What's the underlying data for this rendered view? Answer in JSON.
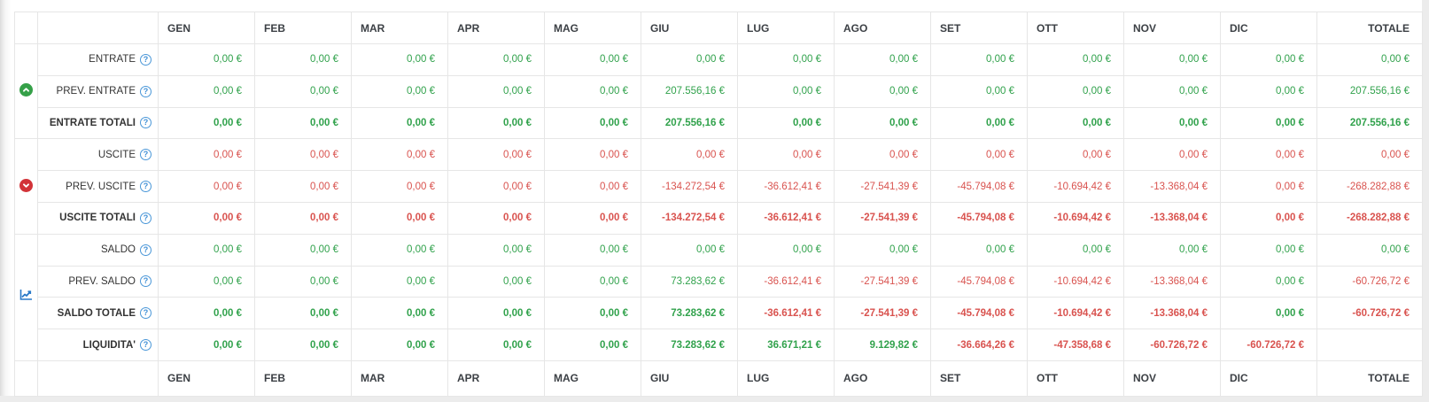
{
  "table": {
    "columns": [
      "GEN",
      "FEB",
      "MAR",
      "APR",
      "MAG",
      "GIU",
      "LUG",
      "AGO",
      "SET",
      "OTT",
      "NOV",
      "DIC",
      "TOTALE"
    ],
    "colors": {
      "positive": "#31a24c",
      "negative": "#d9534f",
      "entrate_icon": "#35a048",
      "uscite_icon": "#d23338",
      "saldo_icon": "#2979c8",
      "help_icon": "#3f8fd6"
    },
    "help_glyph": "?",
    "groups": [
      {
        "name": "entrate",
        "icon": "chevron-up-circle-icon",
        "rows": [
          {
            "label": "ENTRATE",
            "bold": false,
            "values": [
              [
                "0,00 €",
                "g"
              ],
              [
                "0,00 €",
                "g"
              ],
              [
                "0,00 €",
                "g"
              ],
              [
                "0,00 €",
                "g"
              ],
              [
                "0,00 €",
                "g"
              ],
              [
                "0,00 €",
                "g"
              ],
              [
                "0,00 €",
                "g"
              ],
              [
                "0,00 €",
                "g"
              ],
              [
                "0,00 €",
                "g"
              ],
              [
                "0,00 €",
                "g"
              ],
              [
                "0,00 €",
                "g"
              ],
              [
                "0,00 €",
                "g"
              ],
              [
                "0,00 €",
                "g"
              ]
            ]
          },
          {
            "label": "PREV. ENTRATE",
            "bold": false,
            "values": [
              [
                "0,00 €",
                "g"
              ],
              [
                "0,00 €",
                "g"
              ],
              [
                "0,00 €",
                "g"
              ],
              [
                "0,00 €",
                "g"
              ],
              [
                "0,00 €",
                "g"
              ],
              [
                "207.556,16 €",
                "g"
              ],
              [
                "0,00 €",
                "g"
              ],
              [
                "0,00 €",
                "g"
              ],
              [
                "0,00 €",
                "g"
              ],
              [
                "0,00 €",
                "g"
              ],
              [
                "0,00 €",
                "g"
              ],
              [
                "0,00 €",
                "g"
              ],
              [
                "207.556,16 €",
                "g"
              ]
            ]
          },
          {
            "label": "ENTRATE TOTALI",
            "bold": true,
            "values": [
              [
                "0,00 €",
                "g"
              ],
              [
                "0,00 €",
                "g"
              ],
              [
                "0,00 €",
                "g"
              ],
              [
                "0,00 €",
                "g"
              ],
              [
                "0,00 €",
                "g"
              ],
              [
                "207.556,16 €",
                "g"
              ],
              [
                "0,00 €",
                "g"
              ],
              [
                "0,00 €",
                "g"
              ],
              [
                "0,00 €",
                "g"
              ],
              [
                "0,00 €",
                "g"
              ],
              [
                "0,00 €",
                "g"
              ],
              [
                "0,00 €",
                "g"
              ],
              [
                "207.556,16 €",
                "g"
              ]
            ]
          }
        ]
      },
      {
        "name": "uscite",
        "icon": "chevron-down-circle-icon",
        "rows": [
          {
            "label": "USCITE",
            "bold": false,
            "values": [
              [
                "0,00 €",
                "r"
              ],
              [
                "0,00 €",
                "r"
              ],
              [
                "0,00 €",
                "r"
              ],
              [
                "0,00 €",
                "r"
              ],
              [
                "0,00 €",
                "r"
              ],
              [
                "0,00 €",
                "r"
              ],
              [
                "0,00 €",
                "r"
              ],
              [
                "0,00 €",
                "r"
              ],
              [
                "0,00 €",
                "r"
              ],
              [
                "0,00 €",
                "r"
              ],
              [
                "0,00 €",
                "r"
              ],
              [
                "0,00 €",
                "r"
              ],
              [
                "0,00 €",
                "r"
              ]
            ]
          },
          {
            "label": "PREV. USCITE",
            "bold": false,
            "values": [
              [
                "0,00 €",
                "r"
              ],
              [
                "0,00 €",
                "r"
              ],
              [
                "0,00 €",
                "r"
              ],
              [
                "0,00 €",
                "r"
              ],
              [
                "0,00 €",
                "r"
              ],
              [
                "-134.272,54 €",
                "r"
              ],
              [
                "-36.612,41 €",
                "r"
              ],
              [
                "-27.541,39 €",
                "r"
              ],
              [
                "-45.794,08 €",
                "r"
              ],
              [
                "-10.694,42 €",
                "r"
              ],
              [
                "-13.368,04 €",
                "r"
              ],
              [
                "0,00 €",
                "r"
              ],
              [
                "-268.282,88 €",
                "r"
              ]
            ]
          },
          {
            "label": "USCITE TOTALI",
            "bold": true,
            "values": [
              [
                "0,00 €",
                "r"
              ],
              [
                "0,00 €",
                "r"
              ],
              [
                "0,00 €",
                "r"
              ],
              [
                "0,00 €",
                "r"
              ],
              [
                "0,00 €",
                "r"
              ],
              [
                "-134.272,54 €",
                "r"
              ],
              [
                "-36.612,41 €",
                "r"
              ],
              [
                "-27.541,39 €",
                "r"
              ],
              [
                "-45.794,08 €",
                "r"
              ],
              [
                "-10.694,42 €",
                "r"
              ],
              [
                "-13.368,04 €",
                "r"
              ],
              [
                "0,00 €",
                "r"
              ],
              [
                "-268.282,88 €",
                "r"
              ]
            ]
          }
        ]
      },
      {
        "name": "saldo",
        "icon": "chart-line-icon",
        "rows": [
          {
            "label": "SALDO",
            "bold": false,
            "values": [
              [
                "0,00 €",
                "g"
              ],
              [
                "0,00 €",
                "g"
              ],
              [
                "0,00 €",
                "g"
              ],
              [
                "0,00 €",
                "g"
              ],
              [
                "0,00 €",
                "g"
              ],
              [
                "0,00 €",
                "g"
              ],
              [
                "0,00 €",
                "g"
              ],
              [
                "0,00 €",
                "g"
              ],
              [
                "0,00 €",
                "g"
              ],
              [
                "0,00 €",
                "g"
              ],
              [
                "0,00 €",
                "g"
              ],
              [
                "0,00 €",
                "g"
              ],
              [
                "0,00 €",
                "g"
              ]
            ]
          },
          {
            "label": "PREV. SALDO",
            "bold": false,
            "values": [
              [
                "0,00 €",
                "g"
              ],
              [
                "0,00 €",
                "g"
              ],
              [
                "0,00 €",
                "g"
              ],
              [
                "0,00 €",
                "g"
              ],
              [
                "0,00 €",
                "g"
              ],
              [
                "73.283,62 €",
                "g"
              ],
              [
                "-36.612,41 €",
                "r"
              ],
              [
                "-27.541,39 €",
                "r"
              ],
              [
                "-45.794,08 €",
                "r"
              ],
              [
                "-10.694,42 €",
                "r"
              ],
              [
                "-13.368,04 €",
                "r"
              ],
              [
                "0,00 €",
                "g"
              ],
              [
                "-60.726,72 €",
                "r"
              ]
            ]
          },
          {
            "label": "SALDO TOTALE",
            "bold": true,
            "values": [
              [
                "0,00 €",
                "g"
              ],
              [
                "0,00 €",
                "g"
              ],
              [
                "0,00 €",
                "g"
              ],
              [
                "0,00 €",
                "g"
              ],
              [
                "0,00 €",
                "g"
              ],
              [
                "73.283,62 €",
                "g"
              ],
              [
                "-36.612,41 €",
                "r"
              ],
              [
                "-27.541,39 €",
                "r"
              ],
              [
                "-45.794,08 €",
                "r"
              ],
              [
                "-10.694,42 €",
                "r"
              ],
              [
                "-13.368,04 €",
                "r"
              ],
              [
                "0,00 €",
                "g"
              ],
              [
                "-60.726,72 €",
                "r"
              ]
            ]
          },
          {
            "label": "LIQUIDITA'",
            "bold": true,
            "values": [
              [
                "0,00 €",
                "g"
              ],
              [
                "0,00 €",
                "g"
              ],
              [
                "0,00 €",
                "g"
              ],
              [
                "0,00 €",
                "g"
              ],
              [
                "0,00 €",
                "g"
              ],
              [
                "73.283,62 €",
                "g"
              ],
              [
                "36.671,21 €",
                "g"
              ],
              [
                "9.129,82 €",
                "g"
              ],
              [
                "-36.664,26 €",
                "r"
              ],
              [
                "-47.358,68 €",
                "r"
              ],
              [
                "-60.726,72 €",
                "r"
              ],
              [
                "-60.726,72 €",
                "r"
              ],
              [
                "",
                ""
              ]
            ]
          }
        ]
      }
    ]
  }
}
